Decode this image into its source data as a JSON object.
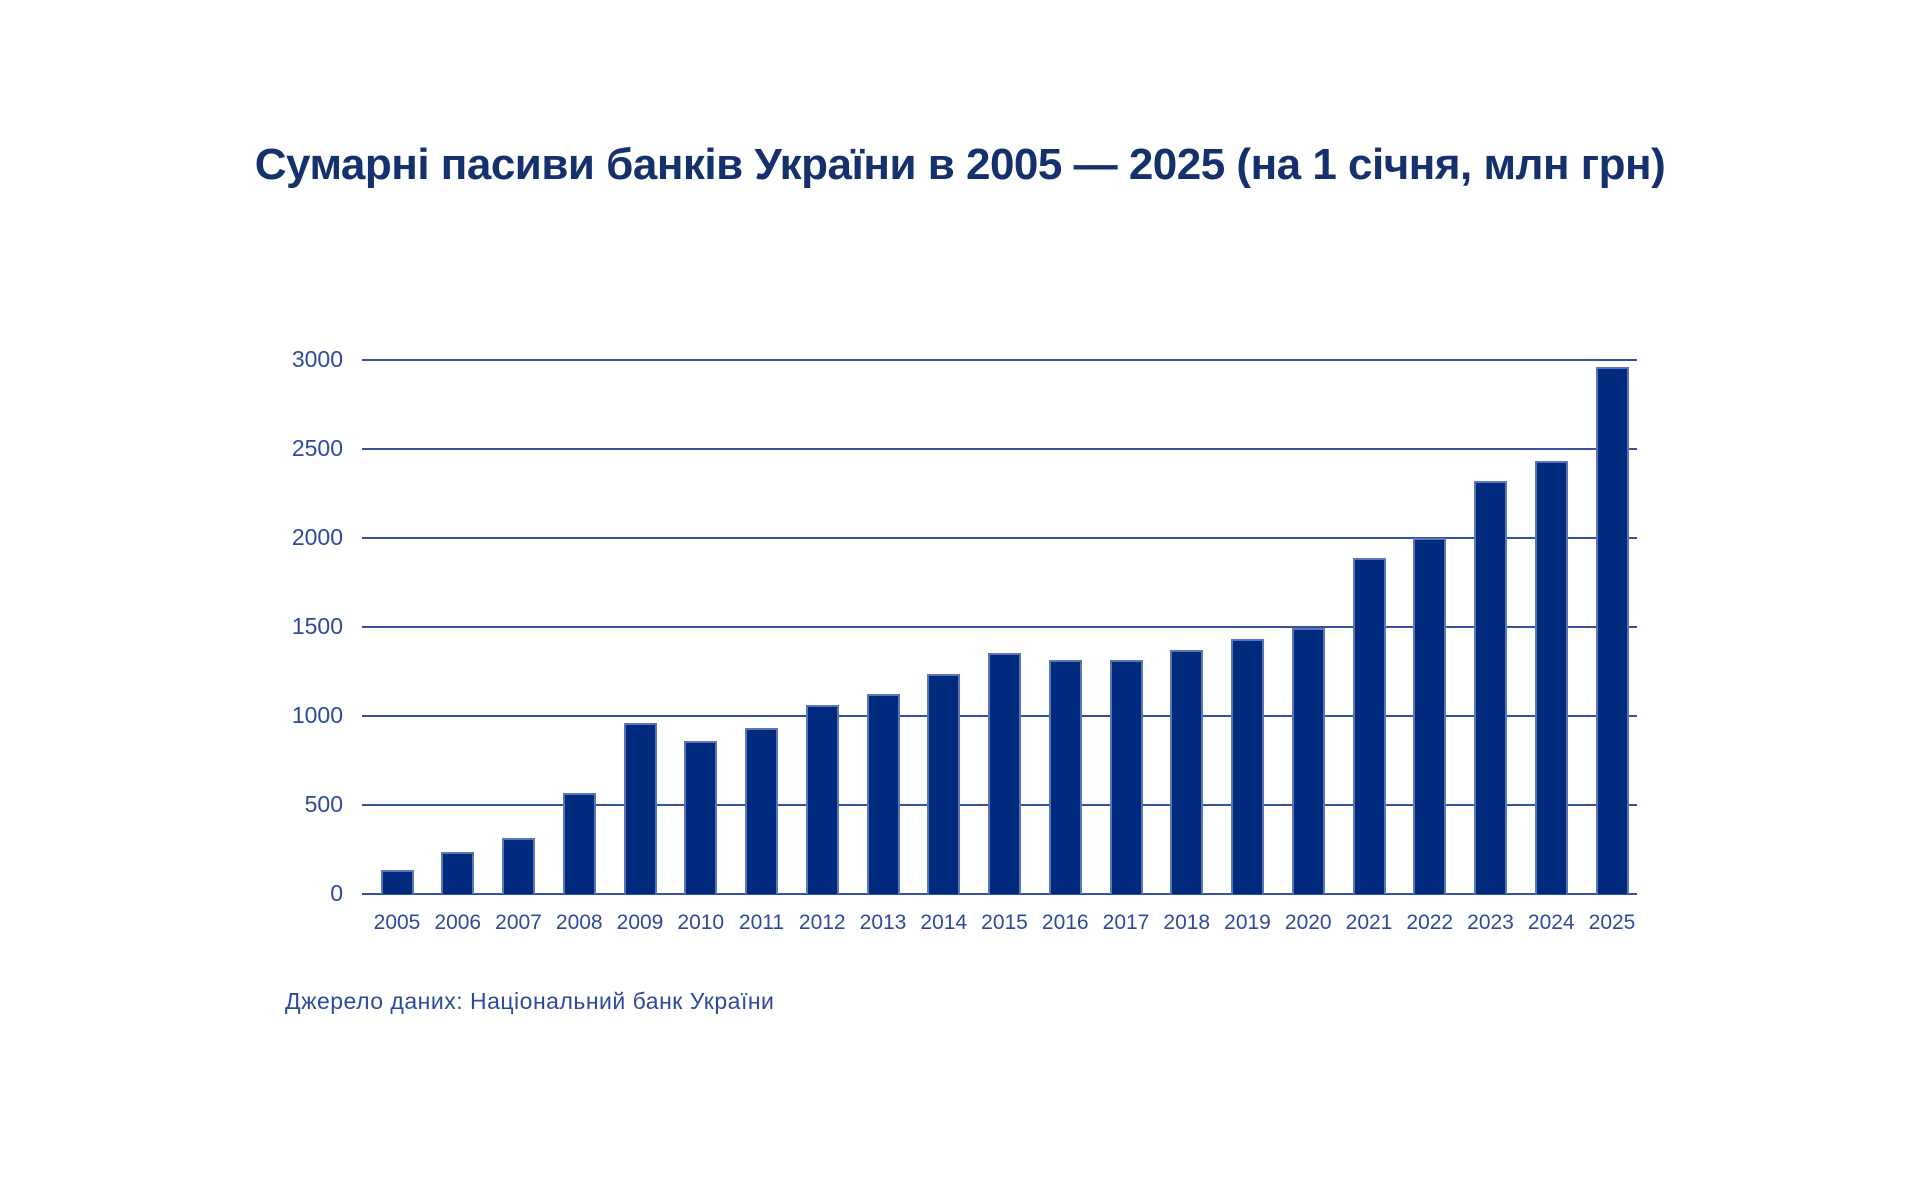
{
  "title": {
    "text": "Сумарні пасиви банків України в 2005 — 2025 (на 1 січня, млн грн)",
    "color": "#14306d"
  },
  "source_note": {
    "text": "Джерело даних: Національний банк України",
    "color": "#2d4b9c"
  },
  "colors": {
    "bar_fill": "#002a7e",
    "bar_border": "#5c75b5",
    "gridline": "#35529e",
    "tick_label": "#2d4b9c"
  },
  "chart_data": {
    "type": "bar",
    "title": "Сумарні пасиви банків України в 2005 — 2025 (на 1 січня, млн грн)",
    "unit": "млн грн",
    "categories": [
      "2005",
      "2006",
      "2007",
      "2008",
      "2009",
      "2010",
      "2011",
      "2012",
      "2013",
      "2014",
      "2015",
      "2016",
      "2017",
      "2018",
      "2019",
      "2020",
      "2021",
      "2022",
      "2023",
      "2024",
      "2025"
    ],
    "values": [
      135,
      235,
      315,
      565,
      960,
      860,
      930,
      1060,
      1125,
      1235,
      1355,
      1315,
      1315,
      1370,
      1430,
      1495,
      1890,
      2000,
      2320,
      2430,
      2960
    ],
    "xlabel": "",
    "ylabel": "",
    "ylim": [
      0,
      3000
    ],
    "yticks": [
      0,
      500,
      1000,
      1500,
      2000,
      2500,
      3000
    ],
    "grid": "horizontal",
    "legend": "none"
  }
}
